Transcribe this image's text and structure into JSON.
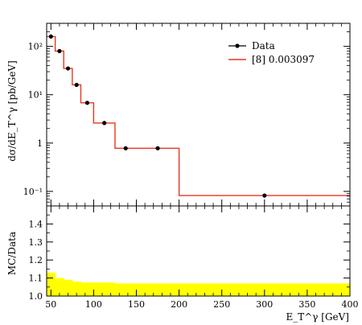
{
  "chart_data": [
    {
      "type": "line",
      "panel": "main",
      "ylabel": "dσ/dE_T^γ [pb/GeV]",
      "yscale": "log",
      "ylim": [
        0.05,
        300
      ],
      "xlim": [
        45,
        400
      ],
      "bin_edges": [
        45,
        55,
        65,
        75,
        85,
        100,
        125,
        150,
        200,
        400
      ],
      "yticks": [
        {
          "value": 100,
          "label": "10²"
        },
        {
          "value": 10,
          "label": "10¹"
        },
        {
          "value": 1,
          "label": "1"
        },
        {
          "value": 0.1,
          "label": "10⁻¹"
        }
      ],
      "series": [
        {
          "name": "Data",
          "kind": "points",
          "color": "#000000",
          "x": [
            50,
            60,
            70,
            80,
            92.5,
            112.5,
            137.5,
            175,
            300
          ],
          "values": [
            160,
            80,
            35,
            16,
            6.8,
            2.6,
            0.78,
            0.78,
            0.082
          ]
        },
        {
          "name": "[8] 0.003097",
          "kind": "histogram",
          "color": "#e8361f",
          "values": [
            160,
            80,
            35,
            16,
            6.8,
            2.6,
            0.78,
            0.78,
            0.082
          ]
        }
      ],
      "legend_position": "top-right"
    },
    {
      "type": "area",
      "panel": "ratio",
      "ylabel": "MC/Data",
      "ylim": [
        1.0,
        1.5
      ],
      "xlim": [
        45,
        400
      ],
      "xticks": [
        50,
        100,
        150,
        200,
        250,
        300,
        350,
        400
      ],
      "yticks": [
        {
          "value": 1.0,
          "label": "1.0"
        },
        {
          "value": 1.1,
          "label": "1.1"
        },
        {
          "value": 1.2,
          "label": "1.2"
        },
        {
          "value": 1.3,
          "label": "1.3"
        },
        {
          "value": 1.4,
          "label": "1.4"
        }
      ],
      "xlabel": "E_T^γ [GeV]",
      "band_color": "#ffff00",
      "bin_edges": [
        45,
        55,
        65,
        75,
        85,
        100,
        125,
        150,
        200,
        400
      ],
      "band_upper": [
        1.13,
        1.1,
        1.09,
        1.08,
        1.075,
        1.075,
        1.07,
        1.07,
        1.07
      ],
      "band_lower": [
        1.0,
        1.0,
        1.0,
        1.0,
        1.0,
        1.0,
        1.0,
        1.0,
        1.0
      ]
    }
  ]
}
